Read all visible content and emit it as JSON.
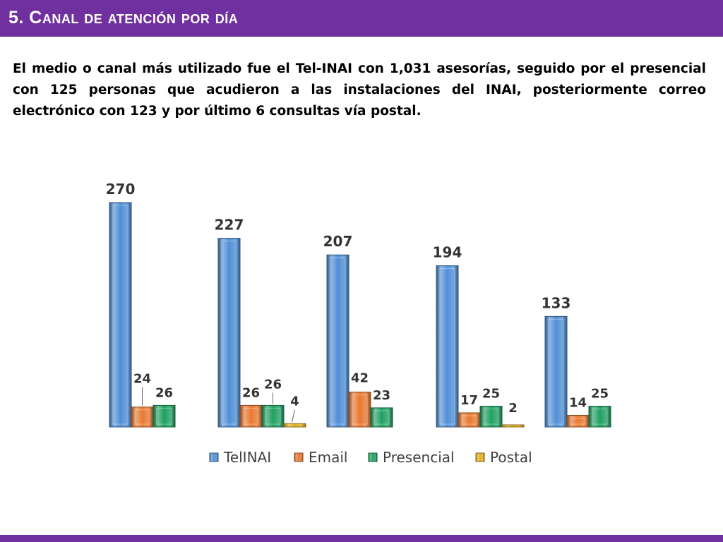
{
  "slide": {
    "title": "5. Canal de atención por día",
    "body": "El medio o canal más utilizado fue el Tel-INAI con 1,031 asesorías, seguido por el presencial con 125 personas que acudieron a las instalaciones del INAI, posteriormente correo electrónico con 123 y por último 6 consultas vía postal."
  },
  "colors": {
    "header": "#7030a0",
    "footer": "#7030a0"
  },
  "chart_data": {
    "type": "bar",
    "title": "",
    "xlabel": "",
    "ylabel": "",
    "categories": [
      "",
      "",
      "",
      "",
      ""
    ],
    "ylim": [
      0,
      270
    ],
    "grid": false,
    "legend_position": "bottom",
    "series": [
      {
        "name": "TelINAI",
        "color": "#4f8fd6",
        "values": [
          270,
          227,
          207,
          194,
          133
        ]
      },
      {
        "name": "Email",
        "color": "#e8782f",
        "values": [
          24,
          26,
          42,
          17,
          14
        ]
      },
      {
        "name": "Presencial",
        "color": "#1fa060",
        "values": [
          26,
          26,
          23,
          25,
          25
        ]
      },
      {
        "name": "Postal",
        "color": "#e2b020",
        "values": [
          null,
          4,
          null,
          2,
          null
        ]
      }
    ]
  }
}
